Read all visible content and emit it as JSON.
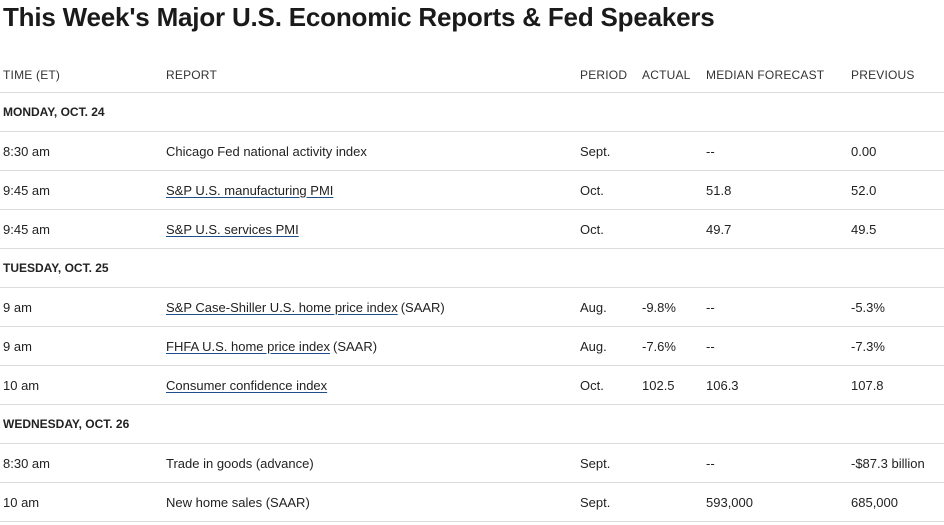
{
  "title": "This Week's Major U.S. Economic Reports & Fed Speakers",
  "columns": {
    "time": "TIME (ET)",
    "report": "REPORT",
    "period": "PERIOD",
    "actual": "ACTUAL",
    "median": "MEDIAN FORECAST",
    "previous": "PREVIOUS"
  },
  "sections": [
    {
      "day": "MONDAY, OCT. 24",
      "rows": [
        {
          "time": "8:30 am",
          "report": "Chicago Fed national activity index",
          "suffix": "",
          "linked": false,
          "period": "Sept.",
          "actual": "",
          "median": "--",
          "previous": "0.00"
        },
        {
          "time": "9:45 am",
          "report": "S&P U.S. manufacturing PMI",
          "suffix": "",
          "linked": true,
          "period": "Oct.",
          "actual": "",
          "median": "51.8",
          "previous": "52.0"
        },
        {
          "time": "9:45 am",
          "report": "S&P U.S. services PMI",
          "suffix": "",
          "linked": true,
          "period": "Oct.",
          "actual": "",
          "median": "49.7",
          "previous": "49.5"
        }
      ]
    },
    {
      "day": "TUESDAY, OCT. 25",
      "rows": [
        {
          "time": "9 am",
          "report": "S&P Case-Shiller U.S. home price index",
          "suffix": "(SAAR)",
          "linked": true,
          "period": "Aug.",
          "actual": "-9.8%",
          "median": "--",
          "previous": "-5.3%"
        },
        {
          "time": "9 am",
          "report": "FHFA U.S. home price index",
          "suffix": "(SAAR)",
          "linked": true,
          "period": "Aug.",
          "actual": "-7.6%",
          "median": "--",
          "previous": "-7.3%"
        },
        {
          "time": "10 am",
          "report": "Consumer confidence index",
          "suffix": "",
          "linked": true,
          "period": "Oct.",
          "actual": "102.5",
          "median": "106.3",
          "previous": "107.8"
        }
      ]
    },
    {
      "day": "WEDNESDAY, OCT. 26",
      "rows": [
        {
          "time": "8:30 am",
          "report": "Trade in goods (advance)",
          "suffix": "",
          "linked": false,
          "period": "Sept.",
          "actual": "",
          "median": "--",
          "previous": "-$87.3 billion"
        },
        {
          "time": "10 am",
          "report": "New home sales (SAAR)",
          "suffix": "",
          "linked": false,
          "period": "Sept.",
          "actual": "",
          "median": "593,000",
          "previous": "685,000"
        }
      ]
    }
  ]
}
